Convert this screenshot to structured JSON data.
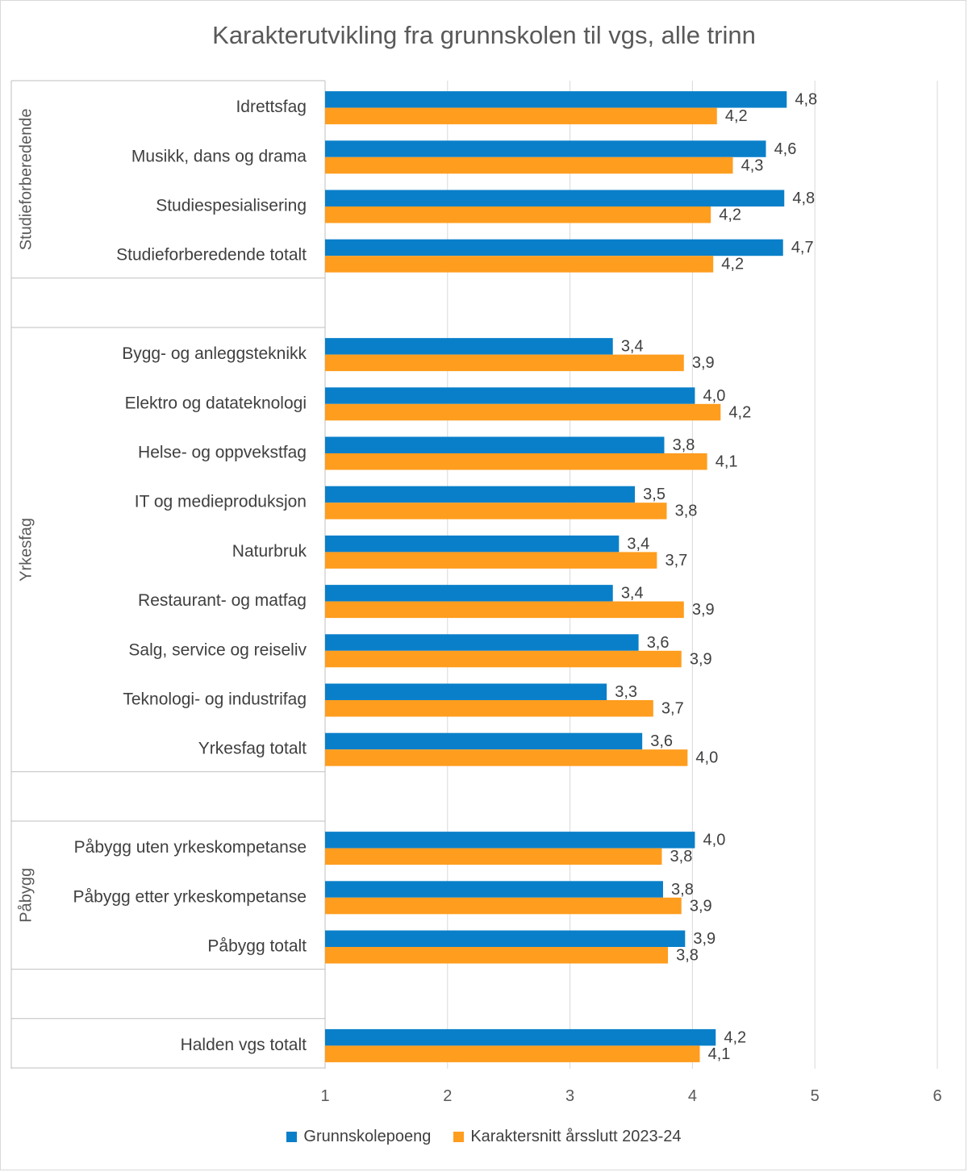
{
  "chart_data": {
    "type": "bar",
    "orientation": "horizontal",
    "title": "Karakterutvikling fra grunnskolen til vgs, alle trinn",
    "xlim": [
      1,
      6
    ],
    "xticks": [
      "1",
      "2",
      "3",
      "4",
      "5",
      "6"
    ],
    "grid": true,
    "legend_position": "bottom",
    "groups": [
      {
        "name": "Studieforberedende",
        "categories": [
          "Idrettsfag",
          "Musikk, dans og drama",
          "Studiespesialisering",
          "Studieforberedende totalt"
        ]
      },
      {
        "name": "Yrkesfag",
        "categories": [
          "Bygg- og anleggsteknikk",
          "Elektro og datateknologi",
          "Helse- og oppvekstfag",
          "IT og medieproduksjon",
          "Naturbruk",
          "Restaurant- og matfag",
          "Salg, service og reiseliv",
          "Teknologi- og industrifag",
          "Yrkesfag totalt"
        ]
      },
      {
        "name": "Påbygg",
        "categories": [
          "Påbygg uten yrkeskompetanse",
          "Påbygg etter yrkeskompetanse",
          "Påbygg totalt"
        ]
      },
      {
        "name": "",
        "categories": [
          "Halden vgs totalt"
        ]
      }
    ],
    "series": [
      {
        "name": "Grunnskolepoeng",
        "color": "#0a7fc9",
        "values": [
          4.77,
          4.6,
          4.75,
          4.74,
          3.35,
          4.02,
          3.77,
          3.53,
          3.4,
          3.35,
          3.56,
          3.3,
          3.59,
          4.02,
          3.76,
          3.94,
          4.19
        ],
        "labels": [
          "4,8",
          "4,6",
          "4,8",
          "4,7",
          "3,4",
          "4,0",
          "3,8",
          "3,5",
          "3,4",
          "3,4",
          "3,6",
          "3,3",
          "3,6",
          "4,0",
          "3,8",
          "3,9",
          "4,2"
        ]
      },
      {
        "name": "Karaktersnitt årsslutt 2023-24",
        "color": "#ff9d1e",
        "values": [
          4.2,
          4.33,
          4.15,
          4.17,
          3.93,
          4.23,
          4.12,
          3.79,
          3.71,
          3.93,
          3.91,
          3.68,
          3.96,
          3.75,
          3.91,
          3.8,
          4.06
        ],
        "labels": [
          "4,2",
          "4,3",
          "4,2",
          "4,2",
          "3,9",
          "4,2",
          "4,1",
          "3,8",
          "3,7",
          "3,9",
          "3,9",
          "3,7",
          "4,0",
          "3,8",
          "3,9",
          "3,8",
          "4,1"
        ]
      }
    ]
  }
}
